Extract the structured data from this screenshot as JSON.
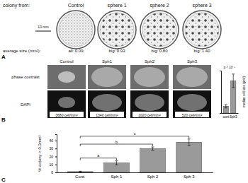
{
  "figure": {
    "panel_labels": [
      "A",
      "B",
      "C"
    ],
    "panel_a": {
      "heading": "colony from:",
      "plates": [
        "Control",
        "sphere 1",
        "sphere 2",
        "sphere 3"
      ],
      "scale_bar": "10 mm",
      "size_heading": "average size (mm²):",
      "sizes": [
        "all: 0.09",
        "big: 0.93",
        "big: 0.80",
        "big: 1.40"
      ]
    },
    "panel_b": {
      "columns": [
        "Control",
        "Sph1",
        "Sph2",
        "Sph3"
      ],
      "rows": [
        "phase contrast",
        "DAPI"
      ],
      "densities": [
        "3680 cell/mm²",
        "1340 cell/mm²",
        "1020 cell/mm²",
        "520 cell/mm²"
      ]
    }
  },
  "chart_data": [
    {
      "type": "bar",
      "categories": [
        "cont",
        "Sph3"
      ],
      "values": [
        0.4,
        1.9
      ],
      "errors": [
        0.1,
        0.4
      ],
      "ylabel": "median cell size (µm²)",
      "annotation": "p < 10⁻⁵",
      "ylim": [
        0,
        2.5
      ],
      "tick_labels": "x",
      "color": "#9a9a9a"
    },
    {
      "type": "bar",
      "categories": [
        "Cont.",
        "Sph 1",
        "Sph 2",
        "Sph 3"
      ],
      "values": [
        1,
        12,
        30,
        38
      ],
      "errors": [
        0.5,
        2.5,
        2,
        4
      ],
      "ylabel": "% colony > 0.3mm²",
      "ylim": [
        0,
        48
      ],
      "yticks": [
        0,
        10,
        20,
        30,
        40
      ],
      "color": "#9a9a9a",
      "comparisons": [
        {
          "label": "a",
          "from": "Cont.",
          "to": "Sph 1"
        },
        {
          "label": "b",
          "from": "Cont.",
          "to": "Sph 2"
        },
        {
          "label": "c",
          "from": "Cont.",
          "to": "Sph 3"
        }
      ]
    }
  ]
}
